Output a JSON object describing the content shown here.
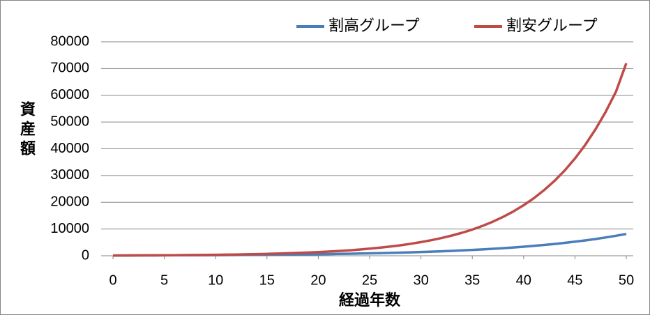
{
  "chart_data": {
    "type": "line",
    "x_label": "経過年数",
    "y_label": "資産額",
    "x": [
      0,
      1,
      2,
      3,
      4,
      5,
      6,
      7,
      8,
      9,
      10,
      11,
      12,
      13,
      14,
      15,
      16,
      17,
      18,
      19,
      20,
      21,
      22,
      23,
      24,
      25,
      26,
      27,
      28,
      29,
      30,
      31,
      32,
      33,
      34,
      35,
      36,
      37,
      38,
      39,
      40,
      41,
      42,
      43,
      44,
      45,
      46,
      47,
      48,
      49,
      50
    ],
    "series": [
      {
        "name": "割高グループ",
        "color": "#4a7ebb",
        "values": [
          100,
          109,
          119,
          130,
          142,
          155,
          170,
          185,
          202,
          221,
          241,
          263,
          288,
          314,
          343,
          375,
          409,
          447,
          488,
          533,
          582,
          635,
          694,
          758,
          827,
          904,
          987,
          1077,
          1176,
          1285,
          1403,
          1532,
          1673,
          1827,
          1995,
          2179,
          2379,
          2598,
          2837,
          3098,
          3383,
          3695,
          4034,
          4406,
          4811,
          5254,
          5737,
          6265,
          6841,
          7471,
          8158
        ]
      },
      {
        "name": "割安グループ",
        "color": "#be4b48",
        "values": [
          100,
          114,
          130,
          148,
          169,
          193,
          219,
          250,
          285,
          325,
          371,
          423,
          482,
          549,
          626,
          714,
          814,
          928,
          1058,
          1206,
          1374,
          1567,
          1786,
          2036,
          2321,
          2646,
          3017,
          3439,
          3921,
          4470,
          5095,
          5809,
          6622,
          7549,
          8606,
          9811,
          11184,
          12750,
          14535,
          16570,
          18889,
          21534,
          24549,
          27985,
          31903,
          36370,
          41462,
          47266,
          53884,
          61427,
          72000
        ]
      }
    ],
    "xlim": [
      0,
      50
    ],
    "xticks": [
      0,
      5,
      10,
      15,
      20,
      25,
      30,
      35,
      40,
      45,
      50
    ],
    "ylim": [
      0,
      80000
    ],
    "yticks": [
      0,
      10000,
      20000,
      30000,
      40000,
      50000,
      60000,
      70000,
      80000
    ],
    "grid": true,
    "legend": "top"
  }
}
